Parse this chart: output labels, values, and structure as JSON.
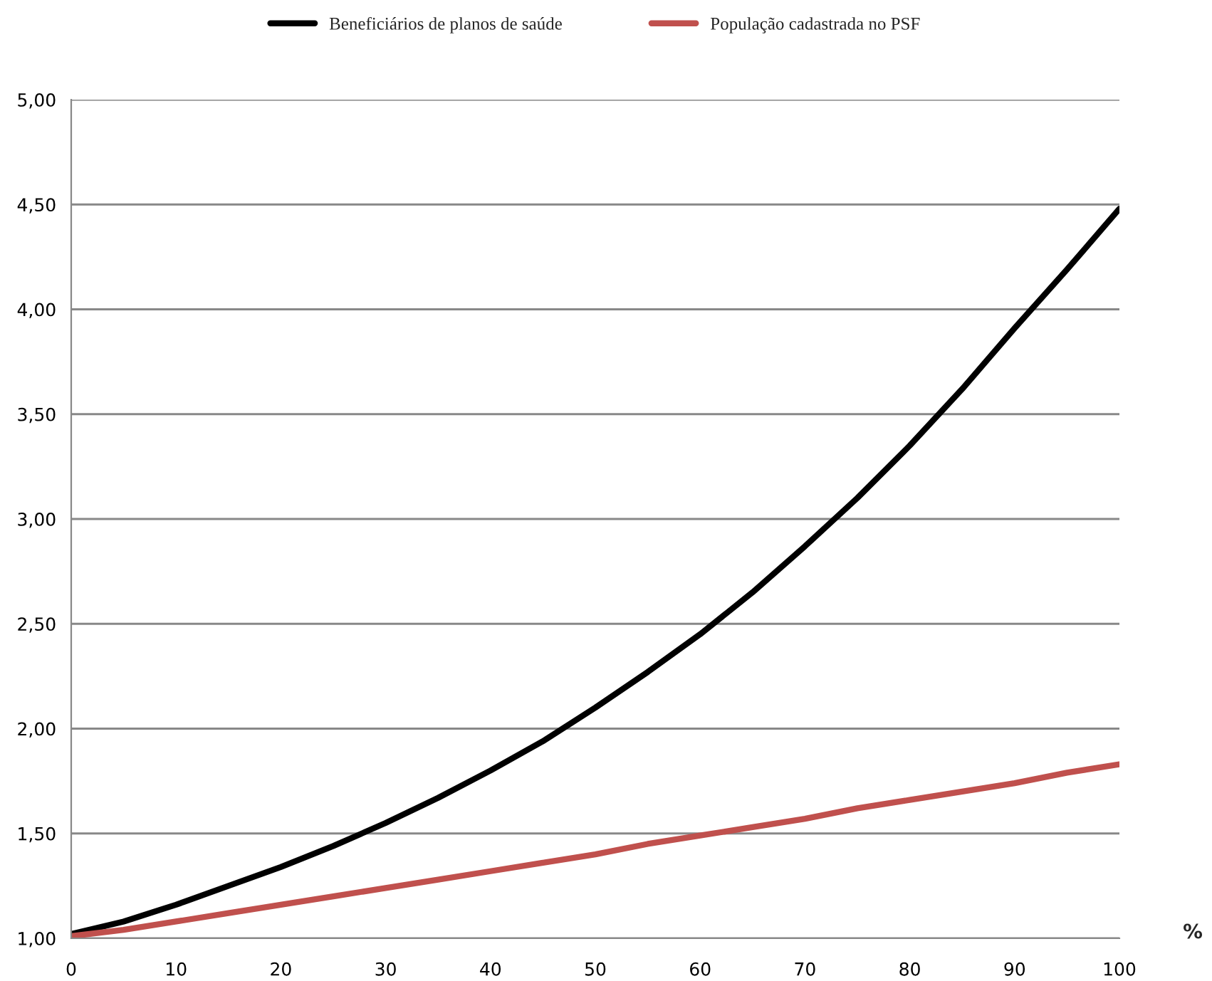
{
  "chart_data": {
    "type": "line",
    "xlabel": "%",
    "x": [
      0,
      5,
      10,
      15,
      20,
      25,
      30,
      35,
      40,
      45,
      50,
      55,
      60,
      65,
      70,
      75,
      80,
      85,
      90,
      95,
      100
    ],
    "series": [
      {
        "name": "Beneficiários de planos de saúde",
        "color": "#000000",
        "values": [
          1.02,
          1.08,
          1.16,
          1.25,
          1.34,
          1.44,
          1.55,
          1.67,
          1.8,
          1.94,
          2.1,
          2.27,
          2.45,
          2.65,
          2.87,
          3.1,
          3.35,
          3.62,
          3.91,
          4.19,
          4.48
        ]
      },
      {
        "name": "População cadastrada no PSF",
        "color": "#c0504d",
        "values": [
          1.01,
          1.04,
          1.08,
          1.12,
          1.16,
          1.2,
          1.24,
          1.28,
          1.32,
          1.36,
          1.4,
          1.45,
          1.49,
          1.53,
          1.57,
          1.62,
          1.66,
          1.7,
          1.74,
          1.79,
          1.83
        ]
      }
    ],
    "xlim": [
      0,
      100
    ],
    "xticks": [
      0,
      10,
      20,
      30,
      40,
      50,
      60,
      70,
      80,
      90,
      100
    ],
    "ylim": [
      1,
      5
    ],
    "yticks": [
      {
        "value": 1,
        "label": "1,00"
      },
      {
        "value": 1.5,
        "label": "1,50"
      },
      {
        "value": 2,
        "label": "2,00"
      },
      {
        "value": 2.5,
        "label": "2,50"
      },
      {
        "value": 3,
        "label": "3,00"
      },
      {
        "value": 3.5,
        "label": "3,50"
      },
      {
        "value": 4,
        "label": "4,00"
      },
      {
        "value": 4.5,
        "label": "4,50"
      },
      {
        "value": 5,
        "label": "5,00"
      }
    ],
    "grid": "y",
    "legend": "top",
    "marker": "none",
    "line_style": "solid"
  }
}
